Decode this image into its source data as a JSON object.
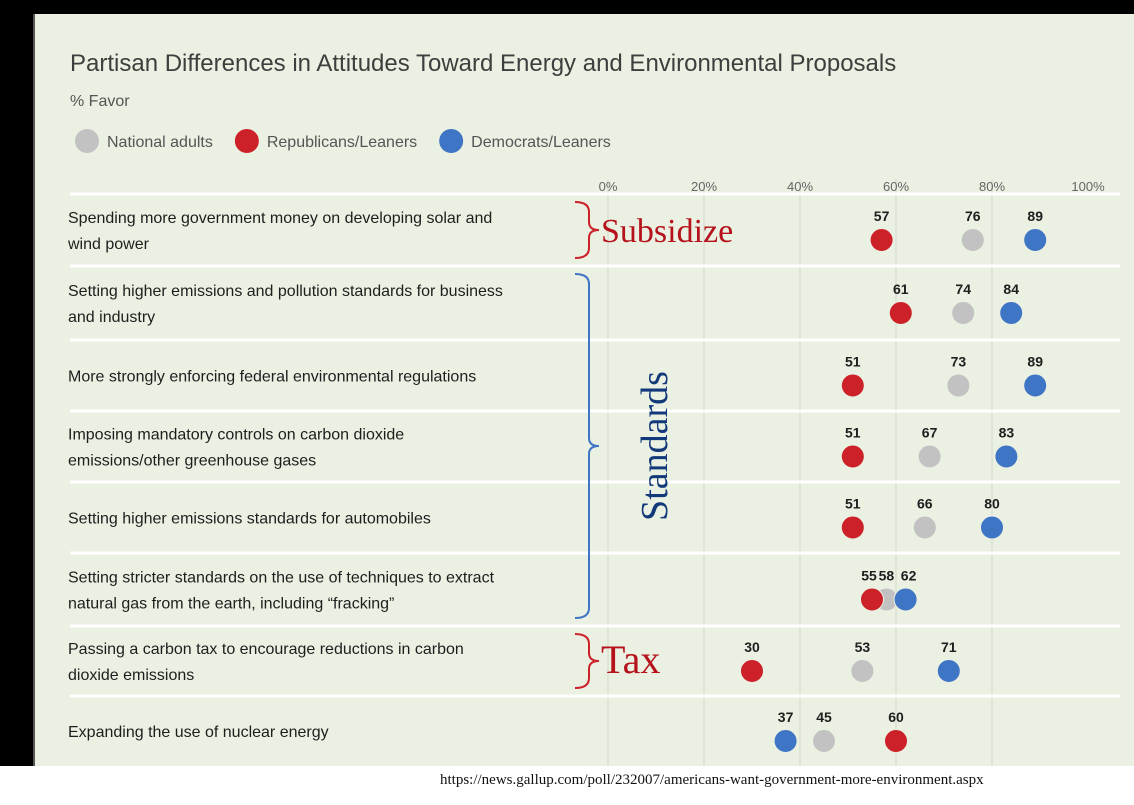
{
  "chart_data": {
    "type": "scatter",
    "title": "Partisan Differences in Attitudes Toward Energy and Environmental Proposals",
    "subtitle": "% Favor",
    "x_ticks": [
      "0%",
      "20%",
      "40%",
      "60%",
      "80%",
      "100%"
    ],
    "xlim": [
      0,
      100
    ],
    "grid": true,
    "legend_position": "top-left",
    "series": [
      {
        "name": "National adults",
        "color": "#c2c2c2",
        "values": [
          76,
          74,
          73,
          67,
          66,
          58,
          53,
          45
        ]
      },
      {
        "name": "Republicans/Leaners",
        "color": "#cc2128",
        "values": [
          57,
          61,
          51,
          51,
          51,
          55,
          30,
          60
        ]
      },
      {
        "name": "Democrats/Leaners",
        "color": "#3f75c5",
        "values": [
          89,
          84,
          89,
          83,
          80,
          62,
          71,
          37
        ]
      }
    ],
    "categories": [
      [
        "Spending more government money on developing solar and",
        "wind power"
      ],
      [
        "Setting higher emissions and pollution standards for business",
        "and industry"
      ],
      [
        "More strongly enforcing federal environmental regulations"
      ],
      [
        "Imposing mandatory controls on carbon dioxide",
        "emissions/other greenhouse gases"
      ],
      [
        "Setting higher emissions standards for automobiles"
      ],
      [
        "Setting stricter standards on the use of techniques to extract",
        "natural gas from the earth, including “fracking”"
      ],
      [
        "Passing a carbon tax to encourage reductions in carbon",
        "dioxide emissions"
      ],
      [
        "Expanding the use of nuclear energy"
      ]
    ],
    "annotations": [
      {
        "text": "Subsidize",
        "color": "#b5121b",
        "rows": [
          0,
          0
        ]
      },
      {
        "text": "Standards",
        "color": "#123a7a",
        "rows": [
          1,
          5
        ]
      },
      {
        "text": "Tax",
        "color": "#b5121b",
        "rows": [
          6,
          6
        ]
      }
    ]
  },
  "source_url": "https://news.gallup.com/poll/232007/americans-want-government-more-environment.aspx"
}
